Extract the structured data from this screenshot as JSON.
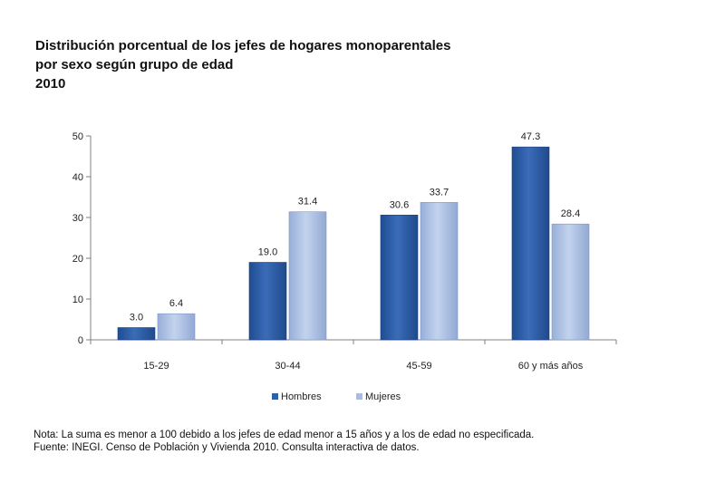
{
  "title": {
    "line1": "Distribución porcentual de los jefes de hogares monoparentales",
    "line2": "por sexo según grupo de edad",
    "line3": "2010"
  },
  "chart_data": {
    "type": "bar",
    "categories": [
      "15-29",
      "30-44",
      "45-59",
      "60 y más años"
    ],
    "series": [
      {
        "name": "Hombres",
        "values": [
          3.0,
          19.0,
          30.6,
          47.3
        ],
        "color": "#2f5fa8"
      },
      {
        "name": "Mujeres",
        "values": [
          6.4,
          31.4,
          33.7,
          28.4
        ],
        "color": "#a9bde0"
      }
    ],
    "data_labels": [
      [
        "3.0",
        "19.0",
        "30.6",
        "47.3"
      ],
      [
        "6.4",
        "31.4",
        "33.7",
        "28.4"
      ]
    ],
    "ylim": [
      0,
      50
    ],
    "yticks": [
      "0",
      "10",
      "20",
      "30",
      "40",
      "50"
    ],
    "grid": false,
    "legend_position": "bottom"
  },
  "notes": {
    "nota": "Nota: La suma es menor a 100 debido a los jefes de edad menor a 15 años y a los de edad no especificada.",
    "fuente": "Fuente: INEGI. Censo de Población y Vivienda 2010. Consulta interactiva de datos."
  }
}
